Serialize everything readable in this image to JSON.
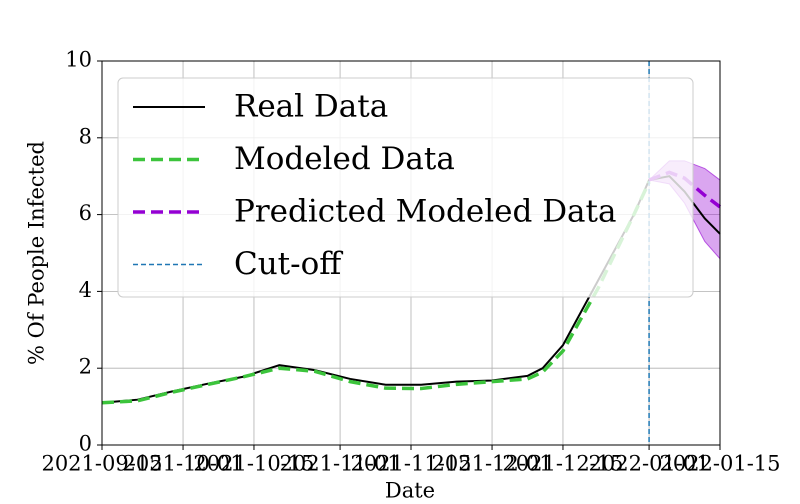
{
  "chart_data": {
    "type": "line",
    "xlabel": "Date",
    "ylabel": "% Of People Infected",
    "x": [
      "2021-09-15",
      "2021-09-22",
      "2021-09-29",
      "2021-10-06",
      "2021-10-13",
      "2021-10-20",
      "2021-10-27",
      "2021-11-03",
      "2021-11-10",
      "2021-11-17",
      "2021-11-24",
      "2021-12-01",
      "2021-12-08",
      "2021-12-11",
      "2021-12-15",
      "2021-12-22",
      "2021-12-29",
      "2022-01-01",
      "2022-01-05",
      "2022-01-08",
      "2022-01-12",
      "2022-01-15"
    ],
    "xlim": [
      "2021-09-15",
      "2022-01-15"
    ],
    "xticks": [
      "2021-09-15",
      "2021-10-01",
      "2021-10-15",
      "2021-11-01",
      "2021-11-15",
      "2021-12-01",
      "2021-12-15",
      "2022-01-01",
      "2022-01-15"
    ],
    "ylim": [
      0,
      10
    ],
    "yticks": [
      0,
      2,
      4,
      6,
      8,
      10
    ],
    "grid": true,
    "legend": "upper left",
    "series": [
      {
        "name": "Real Data",
        "color": "#000000",
        "dash": false,
        "values": [
          1.1,
          1.18,
          1.4,
          1.6,
          1.78,
          2.08,
          1.95,
          1.72,
          1.57,
          1.57,
          1.65,
          1.68,
          1.8,
          2.0,
          2.6,
          4.3,
          6.0,
          6.9,
          7.0,
          6.6,
          5.9,
          5.5
        ]
      },
      {
        "name": "Modeled Data",
        "color": "#3cc43c",
        "dash": true,
        "values": [
          1.1,
          1.15,
          1.38,
          1.58,
          1.78,
          2.0,
          1.92,
          1.65,
          1.48,
          1.47,
          1.58,
          1.65,
          1.72,
          1.9,
          2.45,
          4.1,
          6.0,
          6.85,
          null,
          null,
          null,
          null
        ]
      },
      {
        "name": "Predicted Modeled Data",
        "color": "#9400d3",
        "dash": true,
        "values": [
          null,
          null,
          null,
          null,
          null,
          null,
          null,
          null,
          null,
          null,
          null,
          null,
          null,
          null,
          null,
          null,
          null,
          6.9,
          7.1,
          6.95,
          6.5,
          6.2
        ],
        "band_lower": [
          null,
          null,
          null,
          null,
          null,
          null,
          null,
          null,
          null,
          null,
          null,
          null,
          null,
          null,
          null,
          null,
          null,
          6.9,
          6.8,
          6.3,
          5.3,
          4.85
        ],
        "band_upper": [
          null,
          null,
          null,
          null,
          null,
          null,
          null,
          null,
          null,
          null,
          null,
          null,
          null,
          null,
          null,
          null,
          null,
          6.9,
          7.4,
          7.4,
          7.2,
          6.9
        ]
      }
    ],
    "cutoff": {
      "name": "Cut-off",
      "x": "2022-01-01",
      "color": "#1f77b4"
    }
  }
}
